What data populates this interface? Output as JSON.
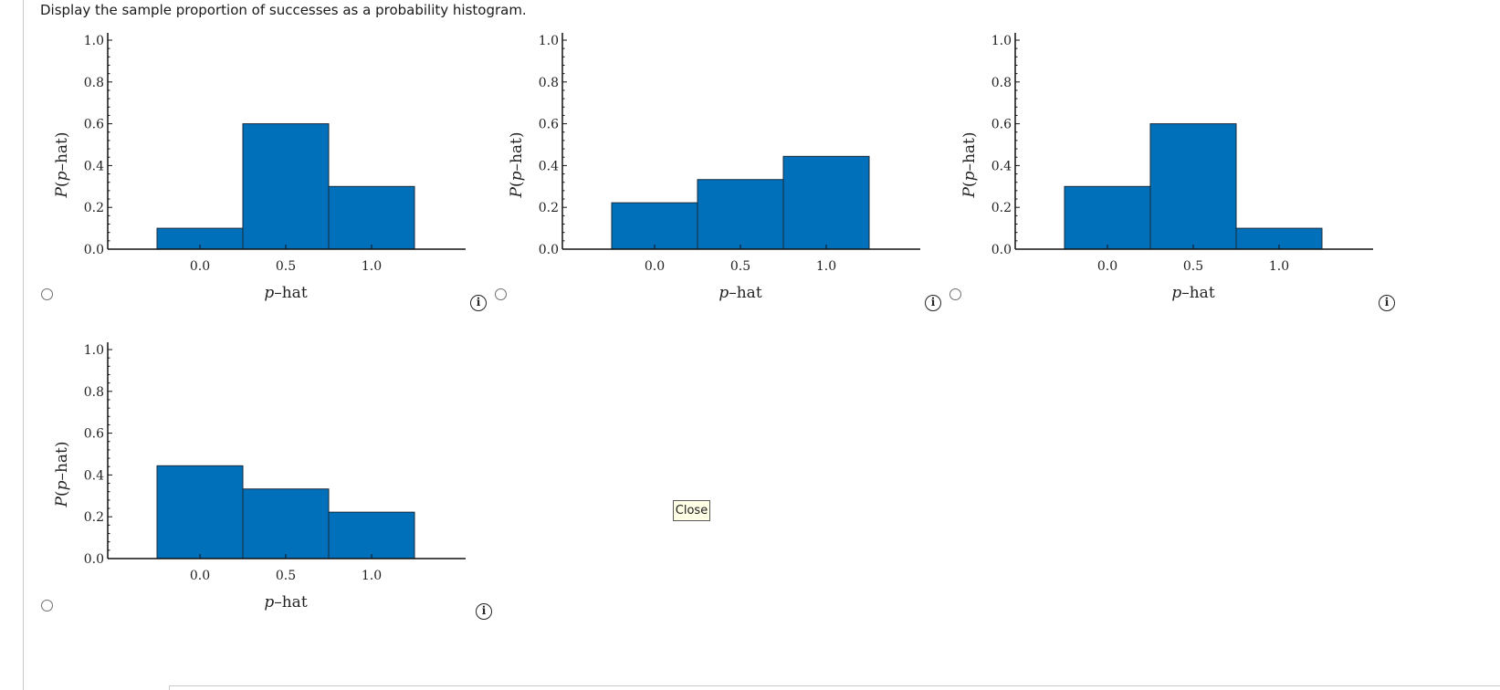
{
  "question": {
    "prompt": "Display the sample proportion of successes as a probability histogram."
  },
  "close_button": {
    "label": "Close"
  },
  "info_icon_glyph": "i",
  "colors": {
    "bar_fill": "#0070bb",
    "bar_stroke": "#1a2a3a",
    "axis": "#111111",
    "dialog_button_bg": "#ffffe6"
  },
  "options": [
    {
      "id": "A",
      "selected": false,
      "icon": "info-icon"
    },
    {
      "id": "B",
      "selected": false,
      "icon": "info-icon"
    },
    {
      "id": "C",
      "selected": false,
      "icon": "info-icon"
    },
    {
      "id": "D",
      "selected": false,
      "icon": "info-icon"
    }
  ],
  "chart_data": [
    {
      "type": "bar",
      "title": "",
      "xlabel": "p-hat",
      "ylabel": "P(p-hat)",
      "categories": [
        "0.0",
        "0.5",
        "1.0"
      ],
      "values": [
        0.1,
        0.6,
        0.3
      ],
      "ylim": [
        0,
        1.0
      ],
      "yticks": [
        "0.0",
        "0.2",
        "0.4",
        "0.6",
        "0.8",
        "1.0"
      ],
      "xticks": [
        "0.0",
        "0.5",
        "1.0"
      ],
      "grid": false,
      "legend": null
    },
    {
      "type": "bar",
      "title": "",
      "xlabel": "p-hat",
      "ylabel": "P(p-hat)",
      "categories": [
        "0.0",
        "0.5",
        "1.0"
      ],
      "values": [
        0.222,
        0.333,
        0.444
      ],
      "ylim": [
        0,
        1.0
      ],
      "yticks": [
        "0.0",
        "0.2",
        "0.4",
        "0.6",
        "0.8",
        "1.0"
      ],
      "xticks": [
        "0.0",
        "0.5",
        "1.0"
      ],
      "grid": false,
      "legend": null
    },
    {
      "type": "bar",
      "title": "",
      "xlabel": "p-hat",
      "ylabel": "P(p-hat)",
      "categories": [
        "0.0",
        "0.5",
        "1.0"
      ],
      "values": [
        0.3,
        0.6,
        0.1
      ],
      "ylim": [
        0,
        1.0
      ],
      "yticks": [
        "0.0",
        "0.2",
        "0.4",
        "0.6",
        "0.8",
        "1.0"
      ],
      "xticks": [
        "0.0",
        "0.5",
        "1.0"
      ],
      "grid": false,
      "legend": null
    },
    {
      "type": "bar",
      "title": "",
      "xlabel": "p-hat",
      "ylabel": "P(p-hat)",
      "categories": [
        "0.0",
        "0.5",
        "1.0"
      ],
      "values": [
        0.444,
        0.333,
        0.222
      ],
      "ylim": [
        0,
        1.0
      ],
      "yticks": [
        "0.0",
        "0.2",
        "0.4",
        "0.6",
        "0.8",
        "1.0"
      ],
      "xticks": [
        "0.0",
        "0.5",
        "1.0"
      ],
      "grid": false,
      "legend": null
    }
  ]
}
